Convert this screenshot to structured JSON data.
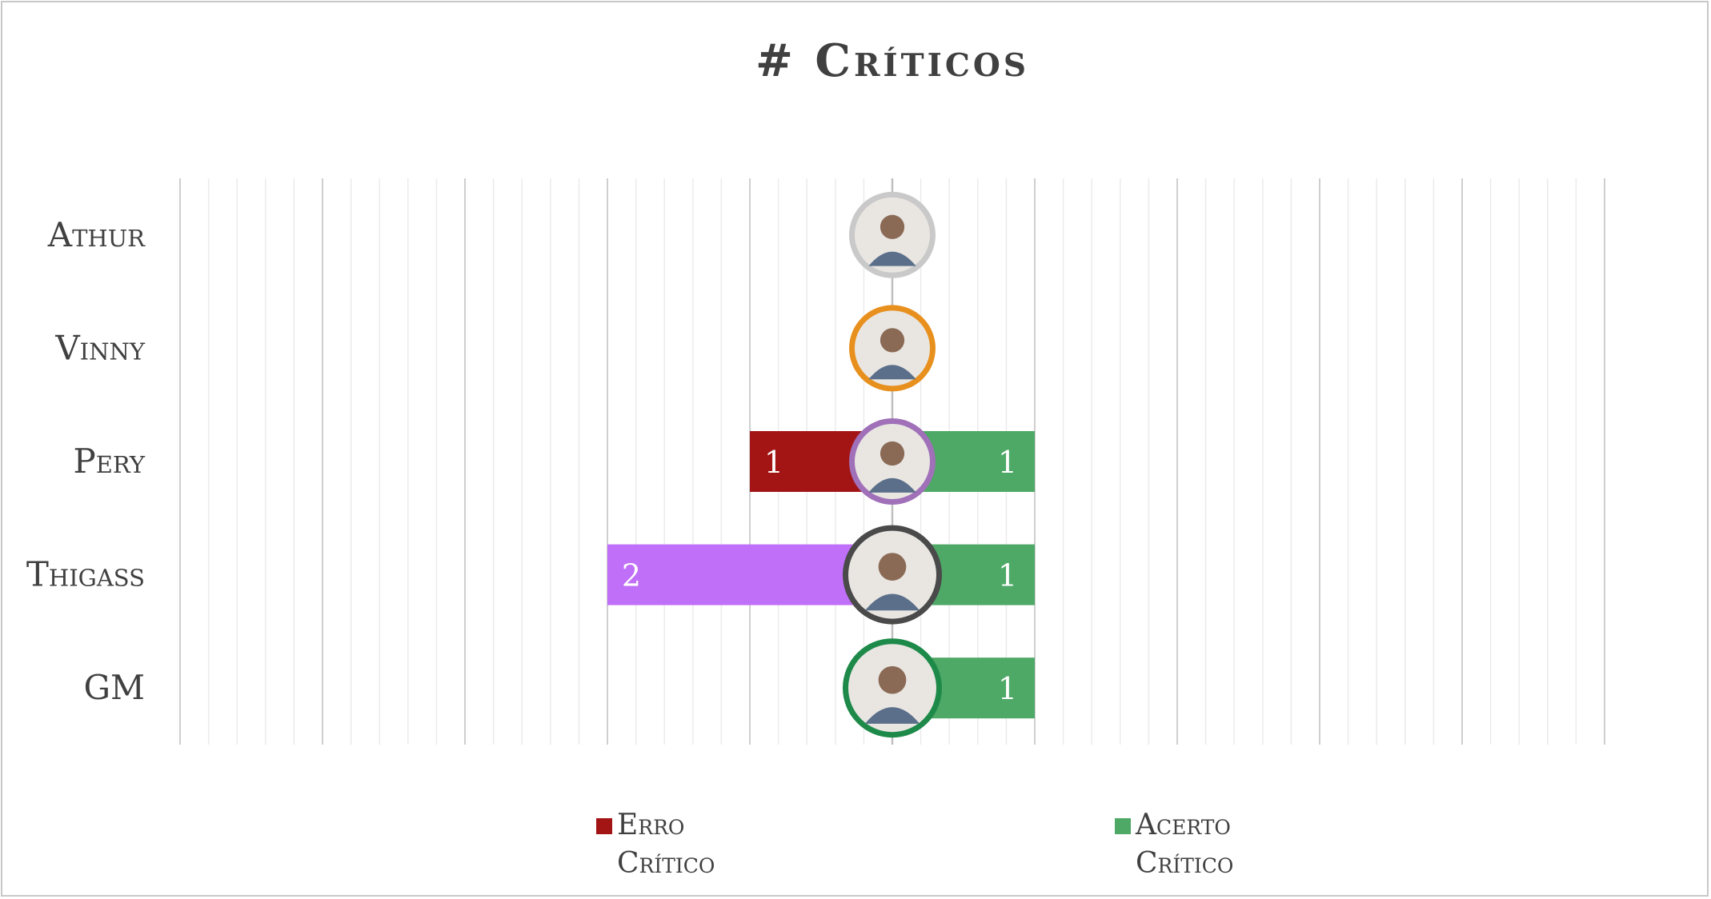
{
  "chart_data": {
    "type": "bar",
    "title": "# Críticos",
    "categories": [
      "Athur",
      "Vinny",
      "Pery",
      "Thigass",
      "GM"
    ],
    "series": [
      {
        "name": "Erro Crítico",
        "values": [
          0,
          0,
          1,
          2,
          0
        ]
      },
      {
        "name": "Acerto Crítico",
        "values": [
          0,
          0,
          1,
          1,
          1
        ]
      }
    ],
    "xlim": [
      -5,
      5
    ],
    "grid": true,
    "legend_position": "bottom",
    "legend_lines": [
      [
        "Erro",
        "Crítico"
      ],
      [
        "Acerto",
        "Crítico"
      ]
    ],
    "avatar_ring_colors": [
      "#c9c9c9",
      "#e8901e",
      "#a070b8",
      "#4a4a4a",
      "#1e8a4a"
    ],
    "bar_colors": {
      "acerto": "#4ea866",
      "erro_default": "#a31515",
      "erro_by_category": {
        "Thigass": "#c070f8"
      }
    },
    "colors": {
      "text": "#404040",
      "title": "#404040",
      "grid_major": "#cfcfcf",
      "grid_minor": "#ebebeb",
      "axis": "#bfbfbf"
    }
  }
}
